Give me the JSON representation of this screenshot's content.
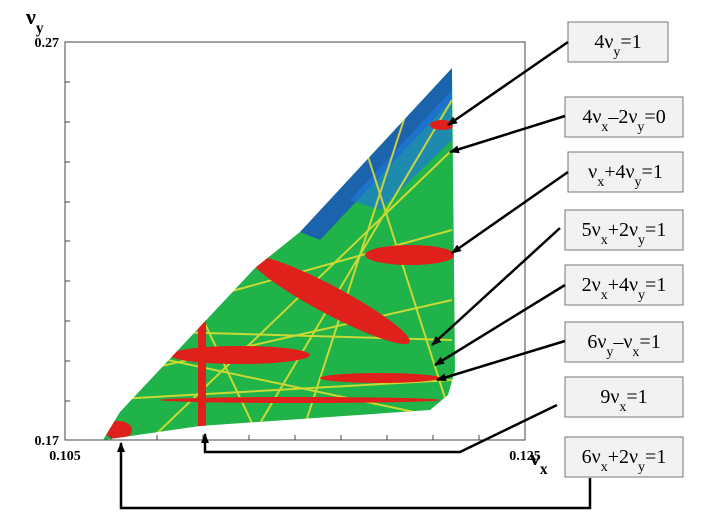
{
  "chart_data": {
    "type": "frequency-map",
    "x_label": "νx",
    "y_label": "νy",
    "xlim": [
      0.105,
      0.125
    ],
    "ylim": [
      0.17,
      0.27
    ],
    "xticks": [
      0.105,
      0.125
    ],
    "yticks": [
      0.17,
      0.27
    ],
    "annotations": [
      "4νy=1",
      "4νx–2νy=0",
      "νx+4νy=1",
      "5νx+2νy=1",
      "2νx+4νy=1",
      "6νy–νx=1",
      "9νx=1",
      "6νx+2νy=1"
    ]
  }
}
